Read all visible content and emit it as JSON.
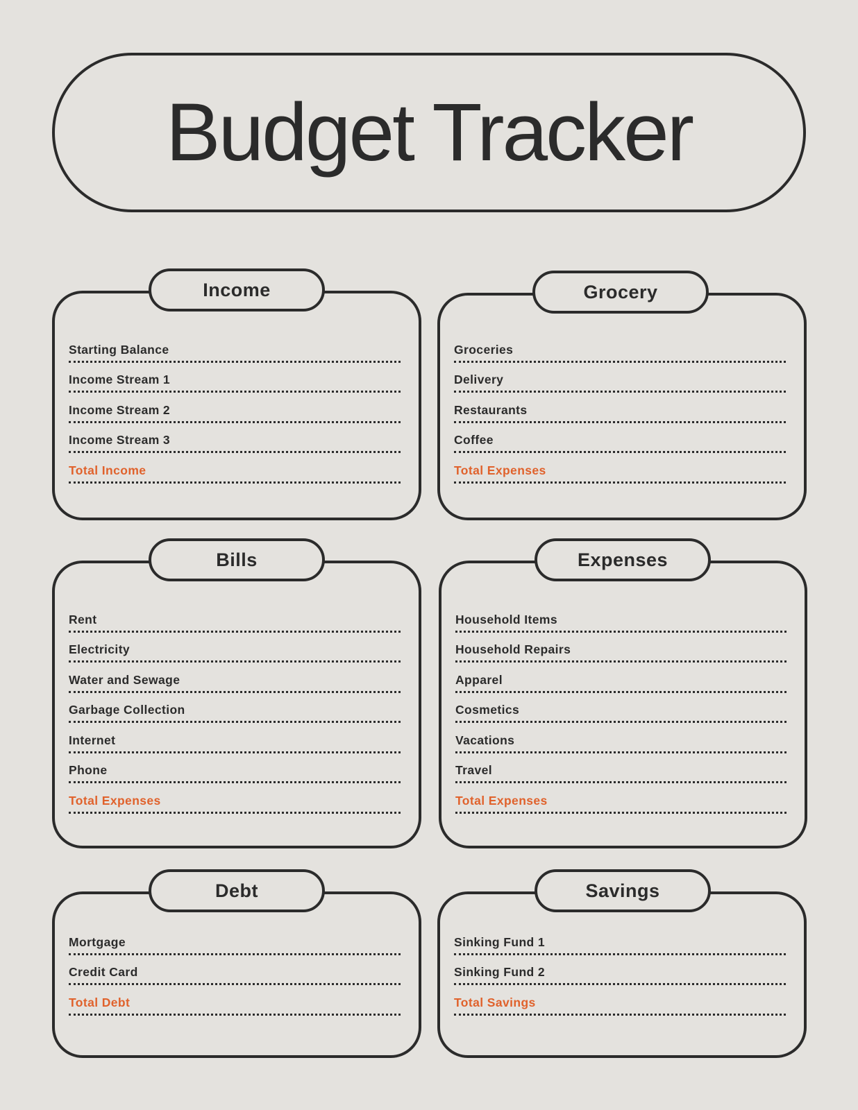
{
  "title": "Budget Tracker",
  "colors": {
    "background": "#e4e2de",
    "ink": "#2b2b2b",
    "accent": "#e0622c"
  },
  "sections": {
    "income": {
      "title": "Income",
      "items": [
        "Starting Balance",
        "Income Stream 1",
        "Income Stream 2",
        "Income Stream 3"
      ],
      "total": "Total Income"
    },
    "grocery": {
      "title": "Grocery",
      "items": [
        "Groceries",
        "Delivery",
        "Restaurants",
        "Coffee"
      ],
      "total": "Total Expenses"
    },
    "bills": {
      "title": "Bills",
      "items": [
        "Rent",
        "Electricity",
        "Water and Sewage",
        "Garbage Collection",
        "Internet",
        "Phone"
      ],
      "total": "Total Expenses"
    },
    "expenses": {
      "title": "Expenses",
      "items": [
        "Household Items",
        "Household Repairs",
        "Apparel",
        "Cosmetics",
        "Vacations",
        "Travel"
      ],
      "total": "Total Expenses"
    },
    "debt": {
      "title": "Debt",
      "items": [
        "Mortgage",
        "Credit Card"
      ],
      "total": "Total Debt"
    },
    "savings": {
      "title": "Savings",
      "items": [
        "Sinking Fund 1",
        "Sinking Fund 2"
      ],
      "total": "Total Savings"
    }
  }
}
